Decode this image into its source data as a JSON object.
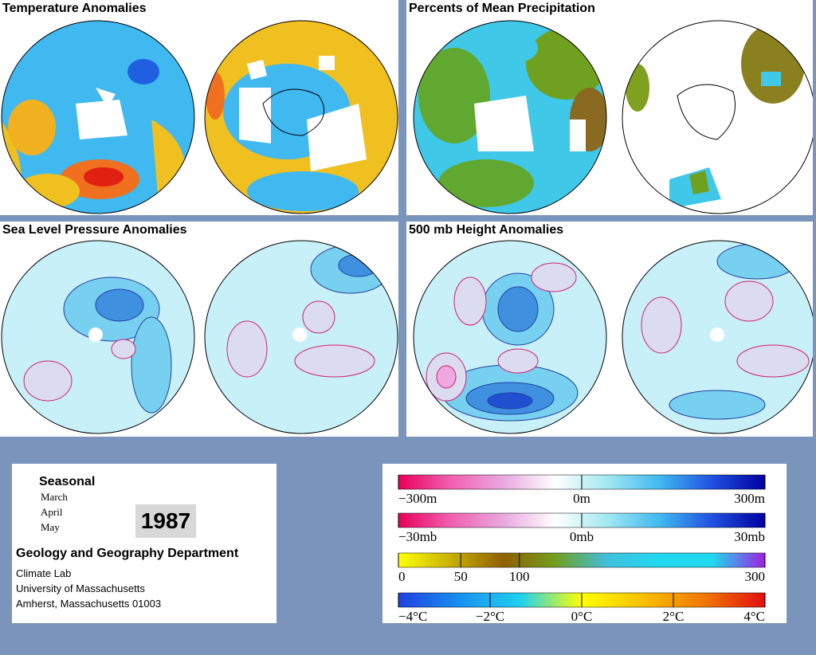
{
  "panels": [
    {
      "id": "temperature",
      "title": "Temperature Anomalies"
    },
    {
      "id": "precipitation",
      "title": "Percents of Mean Precipitation"
    },
    {
      "id": "slp",
      "title": "Sea Level Pressure Anomalies"
    },
    {
      "id": "height500",
      "title": "500 mb Height Anomalies"
    }
  ],
  "info": {
    "season": "Seasonal",
    "months": [
      "March",
      "April",
      "May"
    ],
    "year": "1987",
    "department": "Geology and Geography Department",
    "lab": "Climate Lab",
    "university": "University of Massachusetts",
    "address": "Amherst, Massachusetts 01003"
  },
  "legends": [
    {
      "id": "height-scale",
      "labels": [
        "−300m",
        "0m",
        "300m"
      ],
      "colors": [
        "#e8005a",
        "#f060b0",
        "#e8a8e0",
        "#ffffff",
        "#a0e8f0",
        "#40b8f0",
        "#2050e0",
        "#0000a0"
      ]
    },
    {
      "id": "pressure-scale",
      "labels": [
        "−30mb",
        "0mb",
        "30mb"
      ],
      "colors": [
        "#e8005a",
        "#f060b0",
        "#e8a8e0",
        "#ffffff",
        "#a0e8f0",
        "#40b8f0",
        "#2050e0",
        "#0000a0"
      ]
    },
    {
      "id": "precip-scale",
      "labels": [
        "0",
        "50",
        "100",
        "300"
      ],
      "colors": [
        "#ffff00",
        "#c8b000",
        "#906000",
        "#70a020",
        "#40c0e0",
        "#20d8f0",
        "#20d8f0",
        "#a020e0"
      ]
    },
    {
      "id": "temp-scale",
      "labels": [
        "−4°C",
        "−2°C",
        "0°C",
        "2°C",
        "4°C"
      ],
      "colors": [
        "#2040e0",
        "#1890f0",
        "#20d0f0",
        "#ffff00",
        "#f8c000",
        "#f07800",
        "#e01010"
      ]
    }
  ],
  "colors": {
    "background": "#7b94bc",
    "temp_cool": "#40b8f0",
    "temp_warm": "#f0c020",
    "precip_green": "#60a830",
    "slp_fill": "#c8f0f8"
  }
}
